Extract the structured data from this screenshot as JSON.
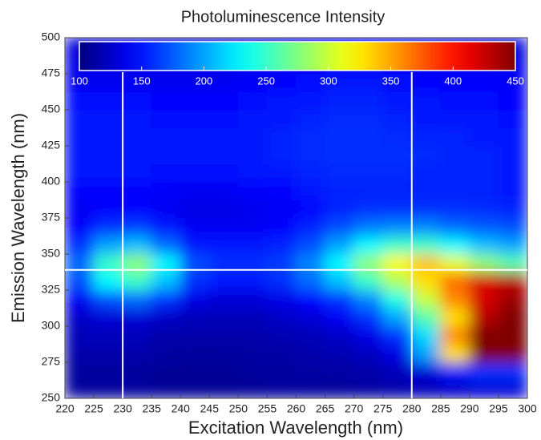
{
  "chart_data": {
    "type": "heatmap",
    "title": "Photoluminescence Intensity",
    "x_label": "Excitation Wavelength (nm)",
    "y_label": "Emission Wavelength (nm)",
    "xlim": [
      220,
      300
    ],
    "ylim": [
      250,
      500
    ],
    "xticks": [
      220,
      225,
      230,
      235,
      240,
      245,
      250,
      255,
      260,
      265,
      270,
      275,
      280,
      285,
      290,
      295,
      300
    ],
    "yticks": [
      250,
      275,
      300,
      325,
      350,
      375,
      400,
      425,
      450,
      475,
      500
    ],
    "clim": [
      100,
      450
    ],
    "cticks": [
      100,
      150,
      200,
      250,
      300,
      350,
      400,
      450
    ],
    "colormap": "jet",
    "crosshair_x": [
      230,
      280
    ],
    "crosshair_y": [
      339
    ],
    "x": [
      222.5,
      227.5,
      232.5,
      237.5,
      242.5,
      247.5,
      252.5,
      257.5,
      262.5,
      267.5,
      272.5,
      277.5,
      282.5,
      287.5,
      292.5,
      297.5
    ],
    "y": [
      256.25,
      268.75,
      281.25,
      293.75,
      306.25,
      318.75,
      331.25,
      343.75,
      356.25,
      368.75,
      381.25,
      393.75,
      406.25,
      418.75,
      431.25,
      443.75,
      456.25,
      468.75,
      481.25,
      493.75
    ],
    "z": [
      [
        110,
        110,
        110,
        108,
        108,
        108,
        108,
        110,
        110,
        110,
        112,
        115,
        120,
        125,
        130,
        130
      ],
      [
        110,
        110,
        110,
        108,
        108,
        108,
        110,
        110,
        112,
        112,
        115,
        120,
        130,
        150,
        160,
        160
      ],
      [
        115,
        115,
        115,
        112,
        110,
        110,
        112,
        112,
        115,
        118,
        122,
        135,
        200,
        330,
        450,
        450
      ],
      [
        120,
        120,
        120,
        115,
        115,
        115,
        115,
        118,
        120,
        125,
        135,
        160,
        220,
        360,
        450,
        450
      ],
      [
        125,
        130,
        130,
        125,
        120,
        120,
        120,
        125,
        130,
        140,
        160,
        200,
        260,
        330,
        430,
        450
      ],
      [
        140,
        170,
        180,
        160,
        135,
        130,
        130,
        135,
        145,
        160,
        190,
        240,
        300,
        360,
        420,
        440
      ],
      [
        170,
        230,
        250,
        210,
        160,
        150,
        150,
        160,
        180,
        210,
        250,
        290,
        330,
        370,
        420,
        430
      ],
      [
        180,
        250,
        280,
        230,
        170,
        160,
        160,
        165,
        190,
        230,
        280,
        320,
        340,
        310,
        280,
        260
      ],
      [
        160,
        200,
        210,
        180,
        150,
        150,
        150,
        155,
        170,
        200,
        230,
        250,
        250,
        230,
        210,
        200
      ],
      [
        145,
        160,
        165,
        150,
        140,
        140,
        140,
        145,
        155,
        170,
        185,
        190,
        190,
        180,
        175,
        170
      ],
      [
        140,
        145,
        145,
        140,
        135,
        135,
        138,
        140,
        145,
        155,
        160,
        160,
        160,
        160,
        158,
        155
      ],
      [
        145,
        145,
        145,
        142,
        140,
        140,
        142,
        145,
        150,
        155,
        155,
        155,
        155,
        155,
        155,
        150
      ],
      [
        150,
        150,
        150,
        148,
        148,
        148,
        150,
        150,
        155,
        158,
        158,
        158,
        155,
        155,
        155,
        150
      ],
      [
        152,
        152,
        152,
        150,
        150,
        150,
        152,
        155,
        158,
        160,
        160,
        160,
        158,
        155,
        155,
        150
      ],
      [
        150,
        150,
        150,
        150,
        150,
        150,
        152,
        155,
        158,
        160,
        160,
        158,
        155,
        155,
        152,
        150
      ],
      [
        150,
        150,
        150,
        148,
        148,
        148,
        150,
        152,
        155,
        158,
        158,
        155,
        152,
        150,
        150,
        148
      ],
      [
        148,
        148,
        148,
        145,
        145,
        145,
        148,
        150,
        152,
        155,
        155,
        152,
        150,
        148,
        148,
        145
      ],
      [
        140,
        140,
        140,
        140,
        140,
        140,
        142,
        145,
        148,
        150,
        150,
        148,
        145,
        145,
        145,
        142
      ],
      [
        135,
        135,
        135,
        135,
        135,
        135,
        138,
        140,
        142,
        145,
        145,
        142,
        140,
        140,
        140,
        138
      ],
      [
        130,
        130,
        130,
        130,
        130,
        130,
        132,
        135,
        138,
        140,
        140,
        138,
        135,
        135,
        135,
        132
      ]
    ]
  }
}
